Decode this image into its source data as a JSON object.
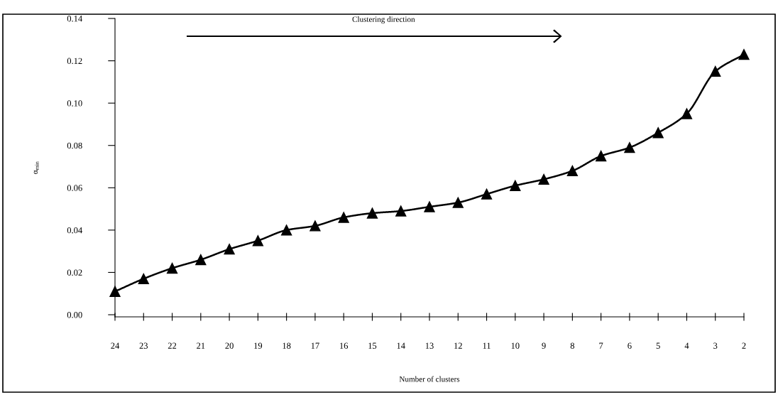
{
  "chart_data": {
    "type": "line",
    "xlabel": "Number of clusters",
    "ylabel": "α$_{min}$",
    "annotations": [
      "Clustering direction"
    ],
    "categories": [
      "24",
      "23",
      "22",
      "21",
      "20",
      "19",
      "18",
      "17",
      "16",
      "15",
      "14",
      "13",
      "12",
      "11",
      "10",
      "9",
      "8",
      "7",
      "6",
      "5",
      "4",
      "3",
      "2"
    ],
    "series": [
      {
        "color": "#000000",
        "values": [
          0.011,
          0.017,
          0.022,
          0.026,
          0.031,
          0.035,
          0.04,
          0.042,
          0.046,
          0.048,
          0.049,
          0.051,
          0.053,
          0.057,
          0.061,
          0.064,
          0.068,
          0.075,
          0.079,
          0.086,
          0.095,
          0.115,
          0.123
        ]
      }
    ],
    "ylim": [
      -0.001,
      0.14
    ],
    "yticks": [
      {
        "value": 0,
        "label": "0.00"
      },
      0.02,
      0.04,
      0.06,
      0.08,
      {
        "value": 0.1,
        "label": "0.10"
      },
      0.12,
      0.14
    ],
    "marker": "triangle",
    "line_style": "solid",
    "grid": false,
    "legend": false
  }
}
